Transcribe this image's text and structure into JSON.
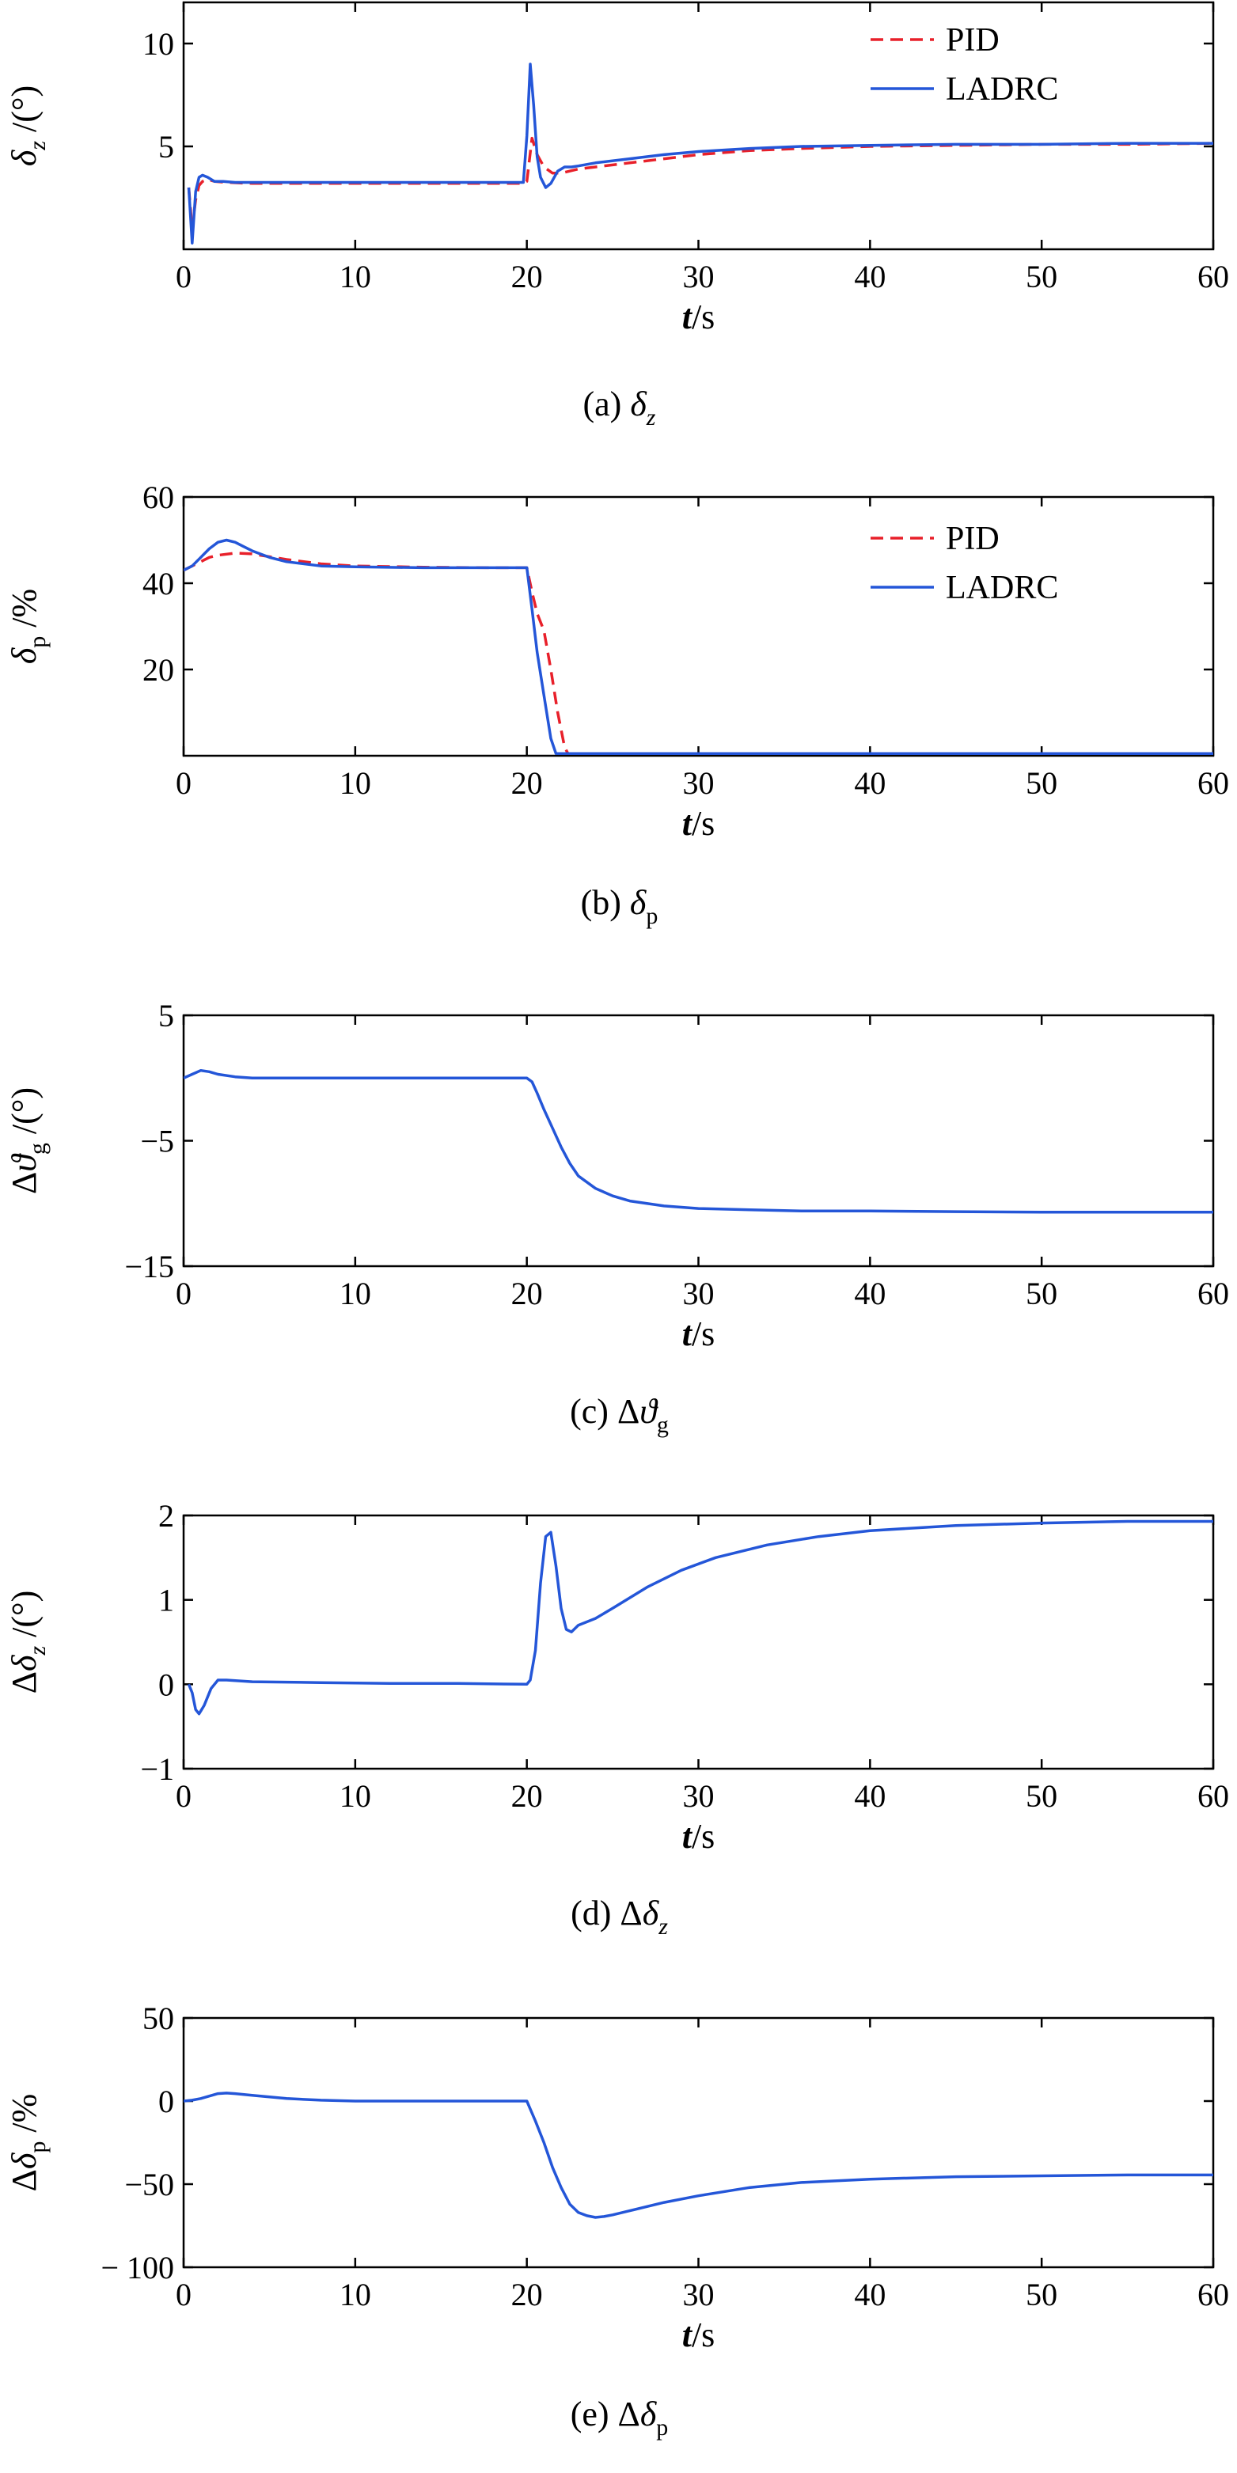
{
  "chart_data": [
    {
      "id": "a",
      "type": "line",
      "caption": "(a) δz",
      "xlabel": "t/s",
      "ylabel": "δz /(°)",
      "xlim": [
        0,
        60
      ],
      "ylim": [
        0,
        12
      ],
      "xticks": [
        0,
        10,
        20,
        30,
        40,
        50,
        60
      ],
      "yticks": [
        5,
        10
      ],
      "legend": "top-right",
      "series": [
        {
          "name": "PID",
          "color": "#e8202a",
          "dash": true,
          "x": [
            0.3,
            0.5,
            0.7,
            0.9,
            1.1,
            1.4,
            1.8,
            2.5,
            4,
            8,
            12,
            16,
            19.8,
            20.0,
            20.3,
            20.6,
            21,
            21.5,
            22,
            22.5,
            23,
            24,
            26,
            28,
            30,
            33,
            36,
            40,
            45,
            50,
            55,
            60
          ],
          "y": [
            3.0,
            1.0,
            2.4,
            3.1,
            3.3,
            3.4,
            3.3,
            3.25,
            3.2,
            3.2,
            3.2,
            3.2,
            3.2,
            3.3,
            5.4,
            4.6,
            4.0,
            3.7,
            3.7,
            3.8,
            3.9,
            4.0,
            4.2,
            4.4,
            4.6,
            4.8,
            4.9,
            5.0,
            5.05,
            5.1,
            5.1,
            5.15
          ]
        },
        {
          "name": "LADRC",
          "color": "#2456d8",
          "dash": false,
          "x": [
            0.3,
            0.5,
            0.7,
            0.9,
            1.1,
            1.4,
            1.8,
            2.3,
            3,
            4,
            8,
            12,
            16,
            19.8,
            20.0,
            20.2,
            20.4,
            20.6,
            20.8,
            21.1,
            21.4,
            21.8,
            22.2,
            22.6,
            23,
            24,
            26,
            28,
            30,
            33,
            36,
            40,
            45,
            50,
            55,
            60
          ],
          "y": [
            3.0,
            0.3,
            2.8,
            3.5,
            3.6,
            3.5,
            3.3,
            3.3,
            3.25,
            3.25,
            3.25,
            3.25,
            3.25,
            3.25,
            5.5,
            9.0,
            7.0,
            4.5,
            3.5,
            3.0,
            3.2,
            3.8,
            4.0,
            4.0,
            4.05,
            4.2,
            4.4,
            4.6,
            4.75,
            4.9,
            5.0,
            5.05,
            5.1,
            5.1,
            5.15,
            5.15
          ]
        }
      ]
    },
    {
      "id": "b",
      "type": "line",
      "caption": "(b) δp",
      "xlabel": "t/s",
      "ylabel": "δp /%",
      "xlim": [
        0,
        60
      ],
      "ylim": [
        0,
        60
      ],
      "xticks": [
        0,
        10,
        20,
        30,
        40,
        50,
        60
      ],
      "yticks": [
        20,
        40,
        60
      ],
      "legend": "top-right",
      "series": [
        {
          "name": "PID",
          "color": "#e8202a",
          "dash": true,
          "x": [
            0,
            0.5,
            1,
            1.5,
            2,
            3,
            4,
            6,
            8,
            10,
            14,
            18,
            20,
            20.3,
            20.6,
            21,
            21.4,
            21.8,
            22.2,
            22.4,
            23,
            26,
            30,
            40,
            50,
            60
          ],
          "y": [
            43,
            44,
            45,
            46,
            46.5,
            47,
            46.8,
            45.5,
            44.5,
            44,
            43.7,
            43.6,
            43.6,
            38,
            33,
            29,
            20,
            10,
            2,
            0.5,
            0.5,
            0.5,
            0.5,
            0.5,
            0.5,
            0.5
          ]
        },
        {
          "name": "LADRC",
          "color": "#2456d8",
          "dash": false,
          "x": [
            0,
            0.5,
            1,
            1.5,
            2,
            2.5,
            3,
            3.5,
            4,
            5,
            6,
            8,
            10,
            14,
            18,
            20,
            20.3,
            20.6,
            21,
            21.4,
            21.7,
            22,
            26,
            30,
            40,
            50,
            60
          ],
          "y": [
            43,
            44,
            46,
            48,
            49.5,
            50,
            49.5,
            48.5,
            47.5,
            46,
            45,
            44,
            43.8,
            43.6,
            43.6,
            43.6,
            34,
            24,
            14,
            4,
            0.5,
            0.5,
            0.5,
            0.5,
            0.5,
            0.5,
            0.5
          ]
        }
      ]
    },
    {
      "id": "c",
      "type": "line",
      "caption": "(c) Δϑg",
      "xlabel": "t/s",
      "ylabel": "Δϑg /(°)",
      "xlim": [
        0,
        60
      ],
      "ylim": [
        -15,
        5
      ],
      "xticks": [
        0,
        10,
        20,
        30,
        40,
        50,
        60
      ],
      "yticks": [
        -15,
        -5,
        5
      ],
      "ytick_labels": [
        "−15",
        "−5",
        "5"
      ],
      "series": [
        {
          "name": "",
          "color": "#2456d8",
          "dash": false,
          "x": [
            0,
            0.5,
            1,
            1.5,
            2,
            3,
            4,
            6,
            10,
            15,
            20,
            20.3,
            20.6,
            21,
            21.5,
            22,
            22.5,
            23,
            24,
            25,
            26,
            28,
            30,
            33,
            36,
            40,
            45,
            50,
            55,
            60
          ],
          "y": [
            0,
            0.3,
            0.6,
            0.5,
            0.3,
            0.1,
            0,
            0,
            0,
            0,
            0,
            -0.3,
            -1.2,
            -2.5,
            -4.0,
            -5.5,
            -6.8,
            -7.8,
            -8.8,
            -9.4,
            -9.8,
            -10.2,
            -10.4,
            -10.5,
            -10.6,
            -10.6,
            -10.65,
            -10.7,
            -10.7,
            -10.7
          ]
        }
      ]
    },
    {
      "id": "d",
      "type": "line",
      "caption": "(d) Δδz",
      "xlabel": "t/s",
      "ylabel": "Δδz /(°)",
      "xlim": [
        0,
        60
      ],
      "ylim": [
        -1,
        2
      ],
      "xticks": [
        0,
        10,
        20,
        30,
        40,
        50,
        60
      ],
      "yticks": [
        -1,
        0,
        1,
        2
      ],
      "ytick_labels": [
        "−1",
        "0",
        "1",
        "2"
      ],
      "series": [
        {
          "name": "",
          "color": "#2456d8",
          "dash": false,
          "x": [
            0.3,
            0.5,
            0.7,
            0.9,
            1.2,
            1.6,
            2,
            2.5,
            4,
            8,
            12,
            16,
            20,
            20.2,
            20.5,
            20.8,
            21.1,
            21.4,
            21.7,
            22,
            22.3,
            22.6,
            23,
            24,
            25,
            27,
            29,
            31,
            34,
            37,
            40,
            45,
            50,
            55,
            60
          ],
          "y": [
            0,
            -0.1,
            -0.3,
            -0.35,
            -0.25,
            -0.05,
            0.05,
            0.05,
            0.03,
            0.02,
            0.01,
            0.01,
            0.0,
            0.05,
            0.4,
            1.2,
            1.75,
            1.8,
            1.4,
            0.9,
            0.65,
            0.62,
            0.7,
            0.78,
            0.9,
            1.15,
            1.35,
            1.5,
            1.65,
            1.75,
            1.82,
            1.88,
            1.91,
            1.93,
            1.93
          ]
        }
      ]
    },
    {
      "id": "e",
      "type": "line",
      "caption": "(e) Δδp",
      "xlabel": "t/s",
      "ylabel": "Δδp /%",
      "xlim": [
        0,
        60
      ],
      "ylim": [
        -100,
        50
      ],
      "xticks": [
        0,
        10,
        20,
        30,
        40,
        50,
        60
      ],
      "yticks": [
        -100,
        -50,
        0,
        50
      ],
      "ytick_labels": [
        "− 100",
        "−50",
        "0",
        "50"
      ],
      "series": [
        {
          "name": "",
          "color": "#2456d8",
          "dash": false,
          "x": [
            0,
            0.5,
            1,
            1.5,
            2,
            2.5,
            3,
            4,
            5,
            6,
            8,
            10,
            14,
            18,
            20,
            20.5,
            21,
            21.5,
            22,
            22.5,
            23,
            23.5,
            24,
            24.5,
            25,
            26,
            28,
            30,
            33,
            36,
            40,
            45,
            50,
            55,
            60
          ],
          "y": [
            0,
            0.5,
            1.5,
            3,
            4.5,
            4.8,
            4.5,
            3.5,
            2.5,
            1.5,
            0.5,
            0,
            0,
            0,
            0,
            -12,
            -25,
            -40,
            -52,
            -62,
            -67,
            -69,
            -70,
            -69.5,
            -68.5,
            -66,
            -61,
            -57,
            -52,
            -49,
            -47,
            -45.5,
            -45,
            -44.5,
            -44.5
          ]
        }
      ]
    }
  ]
}
